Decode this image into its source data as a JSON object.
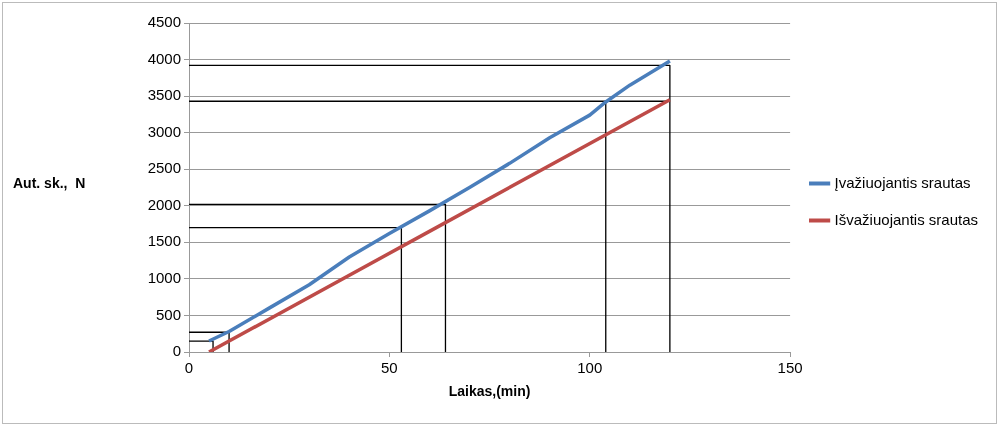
{
  "chart_data": {
    "type": "line",
    "xlabel": "Laikas,(min)",
    "ylabel": "Aut. sk.,  N",
    "xlim": [
      0,
      150
    ],
    "xticks": [
      0,
      50,
      100,
      150
    ],
    "ylim": [
      0,
      4500
    ],
    "yticks": [
      0,
      500,
      1000,
      1500,
      2000,
      2500,
      3000,
      3500,
      4000,
      4500
    ],
    "grid": "y",
    "legend": "right",
    "marker": "none",
    "series": [
      {
        "name": "Įvažiuojantis srautas",
        "color": "#4a7ebb",
        "x": [
          5,
          10,
          20,
          30,
          40,
          50,
          60,
          70,
          80,
          90,
          100,
          104,
          110,
          120
        ],
        "values": [
          150,
          280,
          600,
          920,
          1300,
          1620,
          1930,
          2250,
          2580,
          2930,
          3240,
          3420,
          3650,
          3980
        ]
      },
      {
        "name": "Išvažiuojantis srautas",
        "color": "#be4b48",
        "x": [
          5,
          60,
          120
        ],
        "values": [
          0,
          1650,
          3450
        ]
      },
      {
        "color": "#000000",
        "x": [
          0,
          120,
          120
        ],
        "values": [
          3920,
          3920,
          0
        ]
      },
      {
        "color": "#000000",
        "x": [
          0,
          120
        ],
        "values": [
          3430,
          3430
        ]
      },
      {
        "color": "#000000",
        "x": [
          104,
          104
        ],
        "values": [
          3430,
          0
        ]
      },
      {
        "color": "#000000",
        "x": [
          0,
          64,
          64
        ],
        "values": [
          2020,
          2020,
          0
        ]
      },
      {
        "color": "#000000",
        "x": [
          0,
          53,
          53
        ],
        "values": [
          1700,
          1700,
          0
        ]
      },
      {
        "color": "#000000",
        "x": [
          0,
          10,
          10
        ],
        "values": [
          270,
          270,
          0
        ]
      },
      {
        "color": "#000000",
        "x": [
          0,
          6,
          6
        ],
        "values": [
          150,
          150,
          0
        ]
      }
    ]
  }
}
